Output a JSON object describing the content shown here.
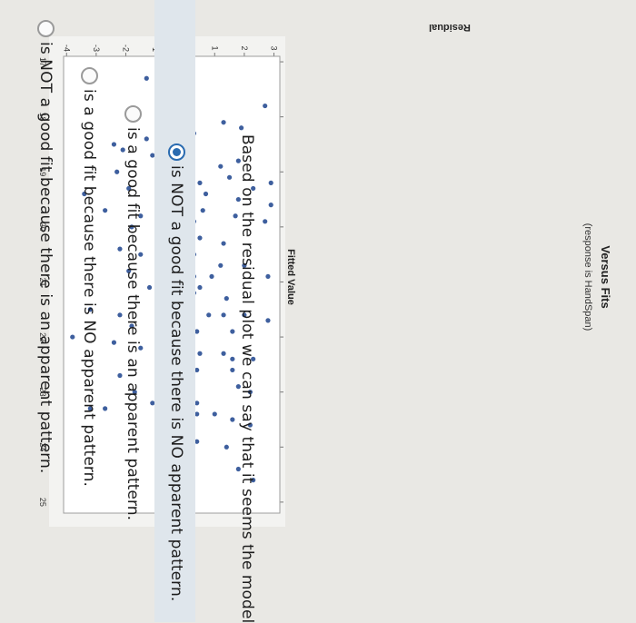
{
  "chart_data": {
    "type": "scatter",
    "title": "Versus Fits",
    "subtitle": "(response is HandSpan)",
    "xlabel": "Fitted Value",
    "ylabel": "Residual",
    "xlim": [
      16.9,
      25.2
    ],
    "ylim": [
      -4.1,
      3.2
    ],
    "x_ticks": [
      "17",
      "18",
      "19",
      "20",
      "21",
      "22",
      "23",
      "24",
      "25"
    ],
    "y_ticks": [
      "3",
      "2",
      "1",
      "0",
      "-1",
      "-2",
      "-3",
      "-4"
    ],
    "reference_line": 0,
    "points": [
      [
        17.3,
        -1.3
      ],
      [
        17.8,
        2.7
      ],
      [
        18.1,
        1.3
      ],
      [
        18.2,
        1.9
      ],
      [
        18.3,
        -0.1
      ],
      [
        18.3,
        0.3
      ],
      [
        18.4,
        -1.3
      ],
      [
        18.5,
        -2.4
      ],
      [
        18.6,
        -2.1
      ],
      [
        18.7,
        -1.1
      ],
      [
        18.8,
        1.8
      ],
      [
        18.9,
        1.2
      ],
      [
        19.0,
        -2.3
      ],
      [
        19.1,
        -0.2
      ],
      [
        19.1,
        1.5
      ],
      [
        19.2,
        0.5
      ],
      [
        19.2,
        2.9
      ],
      [
        19.3,
        -1.9
      ],
      [
        19.3,
        2.3
      ],
      [
        19.4,
        -3.4
      ],
      [
        19.4,
        0.7
      ],
      [
        19.5,
        1.8
      ],
      [
        19.6,
        -0.9
      ],
      [
        19.6,
        2.9
      ],
      [
        19.7,
        -2.7
      ],
      [
        19.7,
        0.6
      ],
      [
        19.8,
        -1.5
      ],
      [
        19.8,
        -0.2
      ],
      [
        19.8,
        1.7
      ],
      [
        19.9,
        0.3
      ],
      [
        19.9,
        2.7
      ],
      [
        20.0,
        -1.8
      ],
      [
        20.0,
        0.1
      ],
      [
        20.1,
        -0.7
      ],
      [
        20.2,
        0.5
      ],
      [
        20.3,
        1.3
      ],
      [
        20.4,
        -2.2
      ],
      [
        20.5,
        -1.5
      ],
      [
        20.5,
        0.3
      ],
      [
        20.6,
        -0.9
      ],
      [
        20.7,
        -0.3
      ],
      [
        20.7,
        1.2
      ],
      [
        20.7,
        2.0
      ],
      [
        20.8,
        -1.9
      ],
      [
        20.9,
        0.3
      ],
      [
        20.9,
        -0.3
      ],
      [
        20.9,
        0.9
      ],
      [
        20.9,
        2.8
      ],
      [
        21.1,
        -1.2
      ],
      [
        21.1,
        -0.5
      ],
      [
        21.1,
        0.5
      ],
      [
        21.2,
        0.3
      ],
      [
        21.3,
        -0.7
      ],
      [
        21.3,
        1.4
      ],
      [
        21.5,
        -3.2
      ],
      [
        21.6,
        -2.2
      ],
      [
        21.6,
        -0.6
      ],
      [
        21.6,
        0.8
      ],
      [
        21.6,
        1.3
      ],
      [
        21.6,
        2.0
      ],
      [
        21.7,
        2.8
      ],
      [
        21.8,
        -1.8
      ],
      [
        21.8,
        -0.1
      ],
      [
        21.9,
        0.4
      ],
      [
        21.9,
        1.6
      ],
      [
        22.0,
        -3.8
      ],
      [
        22.1,
        -2.4
      ],
      [
        22.2,
        -1.5
      ],
      [
        22.3,
        -0.1
      ],
      [
        22.3,
        0.5
      ],
      [
        22.3,
        1.3
      ],
      [
        22.4,
        2.3
      ],
      [
        22.4,
        1.6
      ],
      [
        22.5,
        -0.4
      ],
      [
        22.6,
        0.4
      ],
      [
        22.6,
        1.6
      ],
      [
        22.7,
        -2.2
      ],
      [
        22.8,
        -0.9
      ],
      [
        22.8,
        0.2
      ],
      [
        22.9,
        1.8
      ],
      [
        23.0,
        -1.7
      ],
      [
        23.0,
        2.2
      ],
      [
        23.1,
        -0.6
      ],
      [
        23.2,
        -1.1
      ],
      [
        23.2,
        0.4
      ],
      [
        23.3,
        -3.2
      ],
      [
        23.3,
        -2.7
      ],
      [
        23.4,
        0.4
      ],
      [
        23.4,
        1.0
      ],
      [
        23.5,
        1.6
      ],
      [
        23.6,
        2.2
      ],
      [
        23.8,
        -0.1
      ],
      [
        23.9,
        0.4
      ],
      [
        24.0,
        1.4
      ],
      [
        24.2,
        -0.6
      ],
      [
        24.4,
        1.8
      ],
      [
        24.6,
        2.3
      ]
    ]
  },
  "question": {
    "text": "Based on the residual plot we can say that it seems the model",
    "options": [
      {
        "label": "is NOT a good fit because there is NO apparent pattern.",
        "selected": true
      },
      {
        "label": "is a good fit because there is an apparent pattern.",
        "selected": false
      },
      {
        "label": "is a good fit because there is NO apparent pattern.",
        "selected": false
      },
      {
        "label": "is NOT a good fit because there is an apparent pattern.",
        "selected": false
      }
    ]
  },
  "colors": {
    "point": "#3e5f9e",
    "reference_line": "#5b6fa8",
    "selected": "#2a6bb0"
  }
}
